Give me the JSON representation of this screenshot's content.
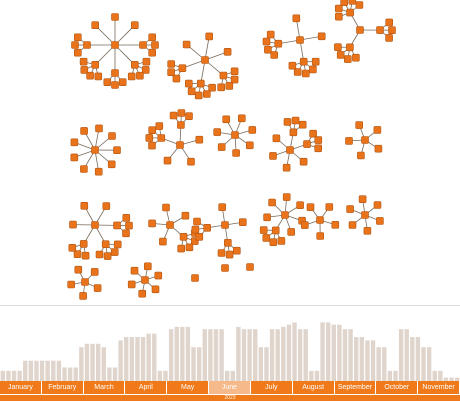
{
  "theme": {
    "node_color": "#e8731a",
    "edge_color": "#7a6a5a",
    "bar_color": "#e0d5cc",
    "month_color": "#f07a1a",
    "selected_month_color": "#f6b98a"
  },
  "graph": {
    "node_icon": "square-node-icon",
    "clusters": [
      {
        "n": 8,
        "sub": [
          3,
          4,
          3,
          4,
          3
        ]
      },
      {
        "n": 6,
        "sub": [
          4,
          5,
          3
        ]
      },
      {
        "n": 4,
        "sub": [
          5,
          4
        ]
      },
      {
        "n": 3,
        "sub": [
          4,
          5,
          3
        ]
      },
      {
        "n": 9,
        "sub": []
      },
      {
        "n": 5,
        "sub": [
          4,
          3
        ]
      },
      {
        "n": 7,
        "sub": []
      },
      {
        "n": 6,
        "sub": [
          3,
          3
        ]
      },
      {
        "n": 5,
        "sub": []
      },
      {
        "n": 6,
        "sub": [
          3,
          4,
          3
        ]
      },
      {
        "n": 5,
        "sub": [
          4
        ]
      },
      {
        "n": 4,
        "sub": [
          3,
          3
        ]
      },
      {
        "n": 7,
        "sub": [
          4
        ]
      },
      {
        "n": 5,
        "sub": []
      },
      {
        "n": 6,
        "sub": []
      },
      {
        "n": 5,
        "sub": []
      },
      {
        "n": 6,
        "sub": []
      },
      {
        "n": 0,
        "sub": []
      },
      {
        "n": 0,
        "sub": []
      },
      {
        "n": 0,
        "sub": []
      }
    ]
  },
  "timeline": {
    "histogram": [
      9,
      9,
      9,
      9,
      18,
      18,
      18,
      18,
      18,
      18,
      18,
      12,
      12,
      12,
      30,
      33,
      33,
      33,
      30,
      12,
      12,
      36,
      39,
      39,
      39,
      39,
      42,
      42,
      9,
      9,
      46,
      48,
      48,
      48,
      30,
      30,
      46,
      46,
      46,
      46,
      9,
      9,
      48,
      46,
      46,
      46,
      30,
      30,
      46,
      46,
      48,
      50,
      52,
      46,
      46,
      9,
      9,
      52,
      52,
      50,
      50,
      46,
      46,
      39,
      39,
      36,
      36,
      30,
      30,
      9,
      9,
      46,
      46,
      39,
      39,
      30,
      30,
      9,
      9,
      3,
      3,
      3
    ],
    "months": [
      "January",
      "February",
      "March",
      "April",
      "May",
      "June",
      "July",
      "August",
      "September",
      "October",
      "November"
    ],
    "selected_months": [
      5
    ],
    "year": "2023"
  }
}
